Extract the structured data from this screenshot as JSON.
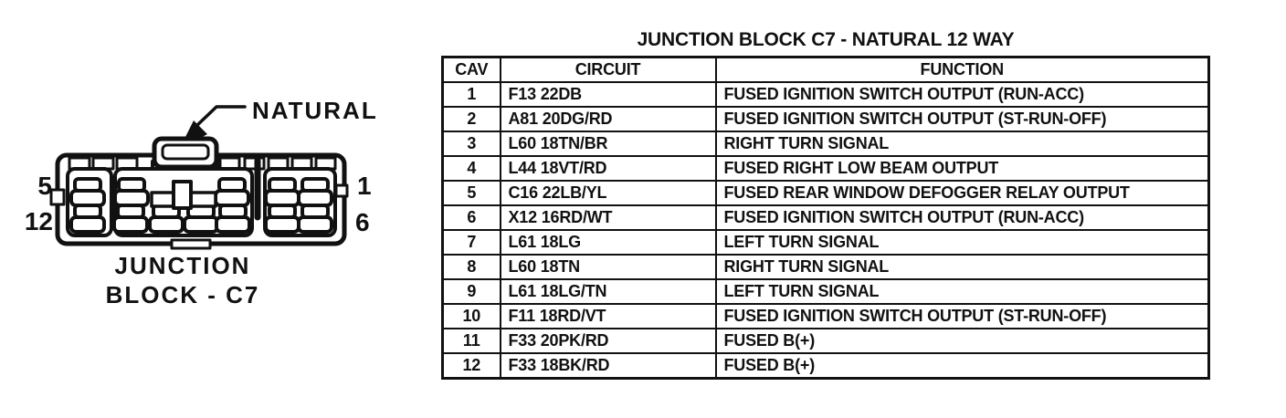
{
  "colors": {
    "ink": "#111111",
    "paper": "#ffffff"
  },
  "diagram": {
    "connector_color_label": "NATURAL",
    "caption": [
      "JUNCTION",
      "BLOCK - C7"
    ],
    "pin_labels": {
      "top_left": "5",
      "bottom_left": "12",
      "top_right": "1",
      "bottom_right": "6"
    }
  },
  "table": {
    "title": "JUNCTION BLOCK C7 - NATURAL 12 WAY",
    "columns": [
      "CAV",
      "CIRCUIT",
      "FUNCTION"
    ],
    "rows": [
      {
        "cav": "1",
        "circuit": "F13 22DB",
        "function": "FUSED IGNITION SWITCH OUTPUT (RUN-ACC)"
      },
      {
        "cav": "2",
        "circuit": "A81 20DG/RD",
        "function": "FUSED IGNITION SWITCH OUTPUT (ST-RUN-OFF)"
      },
      {
        "cav": "3",
        "circuit": "L60 18TN/BR",
        "function": "RIGHT TURN SIGNAL"
      },
      {
        "cav": "4",
        "circuit": "L44 18VT/RD",
        "function": "FUSED RIGHT LOW BEAM OUTPUT"
      },
      {
        "cav": "5",
        "circuit": "C16 22LB/YL",
        "function": "FUSED REAR WINDOW DEFOGGER RELAY OUTPUT"
      },
      {
        "cav": "6",
        "circuit": "X12 16RD/WT",
        "function": "FUSED IGNITION SWITCH OUTPUT (RUN-ACC)"
      },
      {
        "cav": "7",
        "circuit": "L61 18LG",
        "function": "LEFT TURN SIGNAL"
      },
      {
        "cav": "8",
        "circuit": "L60 18TN",
        "function": "RIGHT TURN SIGNAL"
      },
      {
        "cav": "9",
        "circuit": "L61 18LG/TN",
        "function": "LEFT TURN SIGNAL"
      },
      {
        "cav": "10",
        "circuit": "F11 18RD/VT",
        "function": "FUSED IGNITION SWITCH OUTPUT (ST-RUN-OFF)"
      },
      {
        "cav": "11",
        "circuit": "F33 20PK/RD",
        "function": "FUSED B(+)"
      },
      {
        "cav": "12",
        "circuit": "F33 18BK/RD",
        "function": "FUSED B(+)"
      }
    ]
  }
}
